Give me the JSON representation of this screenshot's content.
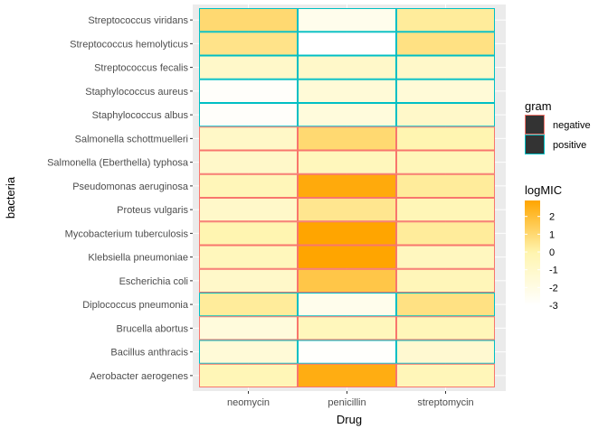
{
  "chart_data": {
    "type": "heatmap",
    "xlabel": "Drug",
    "ylabel": "bacteria",
    "x_categories": [
      "neomycin",
      "penicillin",
      "streptomycin"
    ],
    "y_categories": [
      "Streptococcus viridans",
      "Streptococcus hemolyticus",
      "Streptococcus fecalis",
      "Staphylococcus aureus",
      "Staphylococcus albus",
      "Salmonella schottmuelleri",
      "Salmonella (Eberthella) typhosa",
      "Pseudomonas aeruginosa",
      "Proteus vulgaris",
      "Mycobacterium tuberculosis",
      "Klebsiella pneumoniae",
      "Escherichia coli",
      "Diplococcus pneumonia",
      "Brucella abortus",
      "Bacillus anthracis",
      "Aerobacter aerogenes"
    ],
    "gram": [
      "positive",
      "positive",
      "positive",
      "positive",
      "positive",
      "negative",
      "negative",
      "negative",
      "negative",
      "negative",
      "negative",
      "negative",
      "positive",
      "negative",
      "positive",
      "negative"
    ],
    "logMIC": [
      [
        1.0,
        -2.3,
        0.3
      ],
      [
        0.6,
        -3.0,
        0.7
      ],
      [
        -1.0,
        -1.0,
        -1.0
      ],
      [
        -2.8,
        -1.5,
        -1.5
      ],
      [
        -2.8,
        -1.7,
        -1.0
      ],
      [
        -0.9,
        1.0,
        -0.1
      ],
      [
        -1.0,
        -0.5,
        -0.4
      ],
      [
        -0.4,
        2.7,
        0.3
      ],
      [
        -1.0,
        0.5,
        -0.3
      ],
      [
        -0.1,
        2.9,
        0.3
      ],
      [
        -0.5,
        2.9,
        -0.6
      ],
      [
        -1.0,
        1.7,
        -0.4
      ],
      [
        0.3,
        -2.3,
        0.7
      ],
      [
        -1.7,
        -0.5,
        -0.4
      ],
      [
        -1.5,
        -2.9,
        -1.3
      ],
      [
        -0.3,
        2.6,
        -0.4
      ]
    ],
    "fill_scale": {
      "title": "logMIC",
      "range": [
        -3,
        2.9
      ],
      "low_color": "#FFFFFF",
      "mid_color": "#FFF5B0",
      "high_color": "#FFA500",
      "breaks": [
        2,
        1,
        0,
        -1,
        -2,
        -3
      ],
      "break_labels": [
        "2",
        "1",
        "0",
        "-1",
        "-2",
        "-3"
      ]
    },
    "outline_legend": {
      "title": "gram",
      "entries": [
        {
          "label": "negative",
          "color": "#F8766D"
        },
        {
          "label": "positive",
          "color": "#00BFC4"
        }
      ]
    },
    "panel_background": "#EBEBEB",
    "grid": true
  }
}
